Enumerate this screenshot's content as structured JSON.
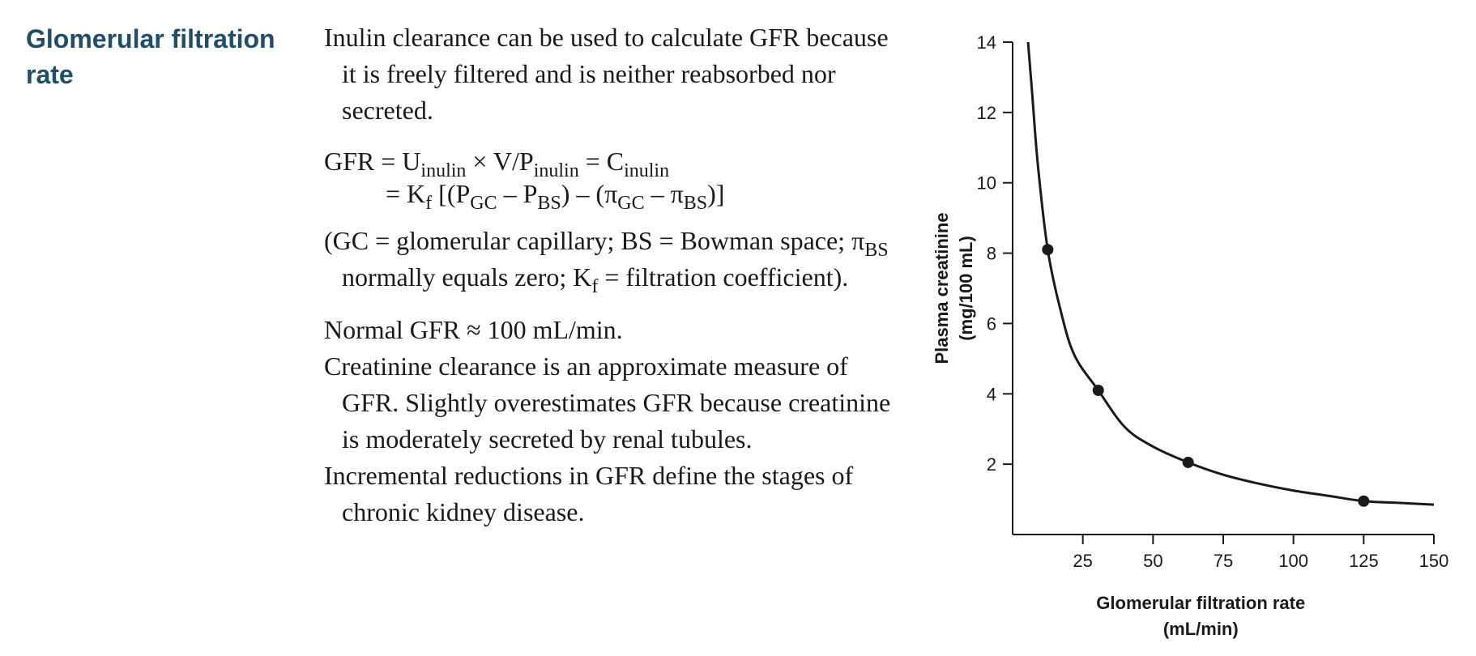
{
  "heading": {
    "line1": "Glomerular filtration",
    "line2": "rate"
  },
  "text": {
    "p1": "Inulin clearance can be used to calculate GFR because it is freely filtered and is neither reabsorbed nor secreted.",
    "formula": {
      "gfr": "GFR",
      "eq": "=",
      "u": "U",
      "u_sub": "inulin",
      "times_v": "× V/P",
      "p_sub": "inulin",
      "eq2": "= C",
      "c_sub": "inulin",
      "line2_prefix": "= K",
      "kf_sub": "f",
      "bracket_open": "[(P",
      "pgc_sub": "GC",
      "minus_p": "– P",
      "pbs_sub": "BS",
      "mid": ") – (π",
      "pigc_sub": "GC",
      "minus_pi": "– π",
      "pibs_sub": "BS",
      "bracket_close": ")]"
    },
    "p2": {
      "a": "(GC = glomerular capillary; BS = Bowman space; π",
      "a_sub": "BS",
      "b": "normally equals zero; K",
      "b_sub": "f",
      "c": "= filtration coefficient)."
    },
    "p3": "Normal GFR ≈ 100 mL/min.",
    "p4": "Creatinine clearance is an approximate measure of GFR. Slightly overestimates GFR because creatinine is moderately secreted by renal tubules.",
    "p5": "Incremental reductions in GFR define the stages of chronic kidney disease."
  },
  "chart_data": {
    "type": "line",
    "xlabel": [
      "Glomerular filtration rate",
      "(mL/min)"
    ],
    "ylabel": [
      "Plasma creatinine",
      "(mg/100 mL)"
    ],
    "xlim": [
      0,
      150
    ],
    "ylim": [
      0,
      14
    ],
    "x_ticks": [
      25,
      50,
      75,
      100,
      125,
      150
    ],
    "y_ticks": [
      2,
      4,
      6,
      8,
      10,
      12,
      14
    ],
    "series": [
      {
        "curve": [
          [
            5.5,
            14
          ],
          [
            7,
            12.5
          ],
          [
            9,
            10.5
          ],
          [
            12.5,
            8.1
          ],
          [
            17,
            6.4
          ],
          [
            22,
            5.1
          ],
          [
            30.5,
            4.1
          ],
          [
            40,
            3.05
          ],
          [
            50,
            2.5
          ],
          [
            62.5,
            2.05
          ],
          [
            75,
            1.7
          ],
          [
            87.5,
            1.45
          ],
          [
            100,
            1.25
          ],
          [
            112.5,
            1.1
          ],
          [
            125,
            0.95
          ],
          [
            137.5,
            0.9
          ],
          [
            150,
            0.85
          ]
        ],
        "markers": [
          [
            12.5,
            8.1
          ],
          [
            30.5,
            4.1
          ],
          [
            62.5,
            2.05
          ],
          [
            125,
            0.95
          ]
        ]
      }
    ],
    "grid": false
  }
}
